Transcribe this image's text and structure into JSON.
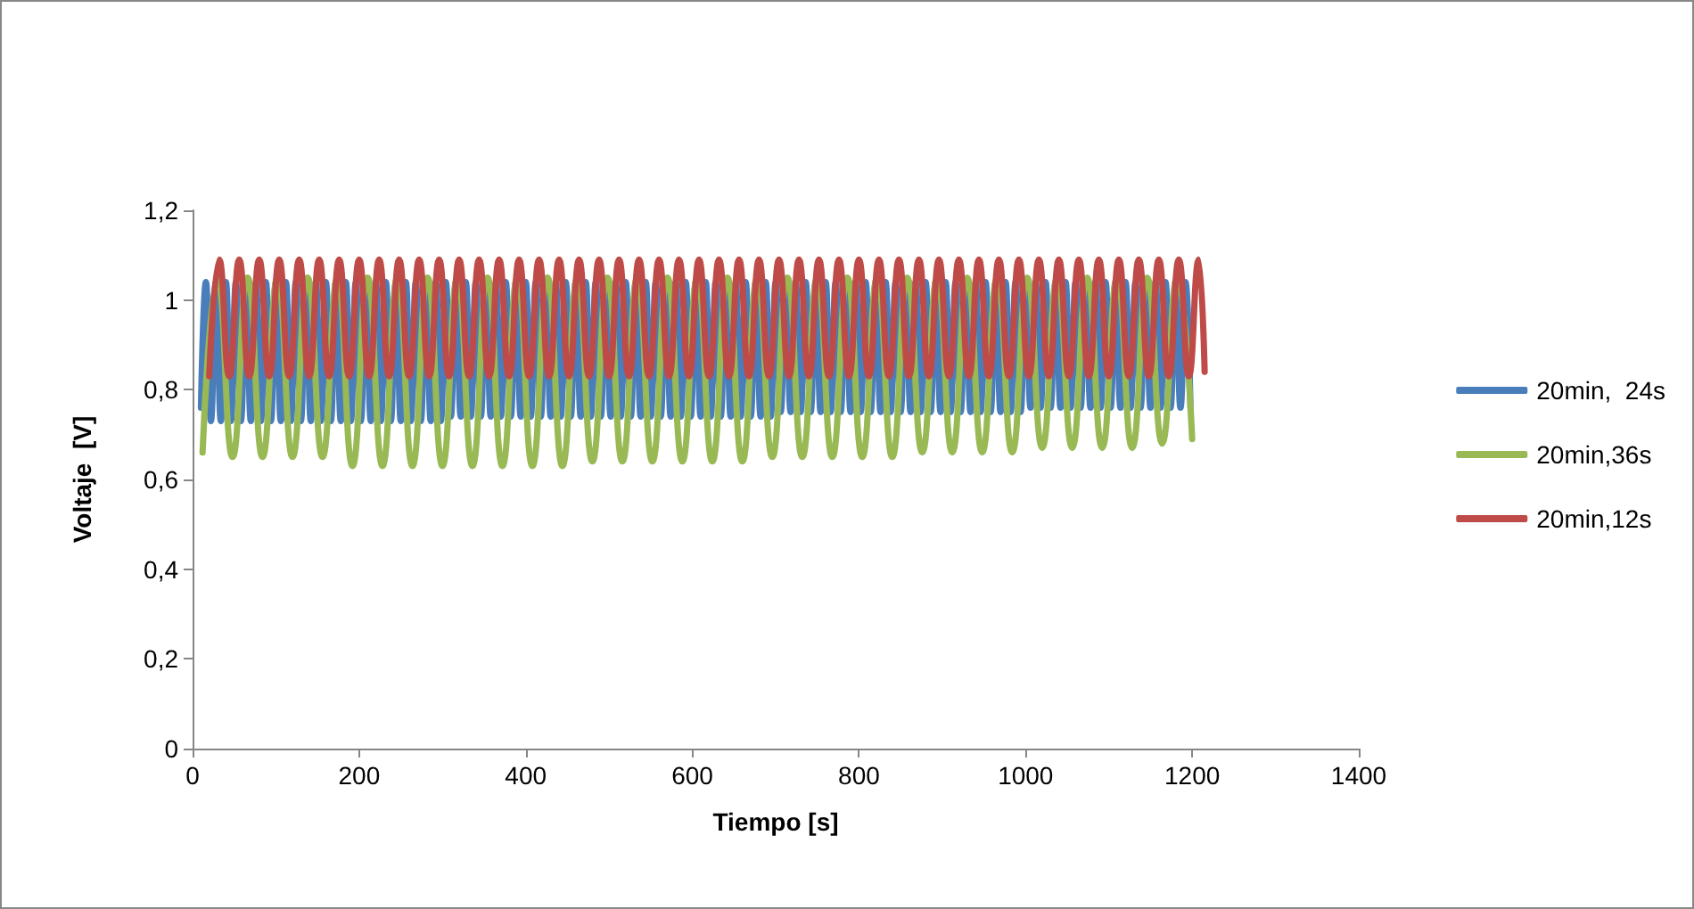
{
  "chart_data": {
    "type": "line",
    "xlabel": "Tiempo [s]",
    "ylabel": "Voltaje  [V]",
    "xlim": [
      0,
      1400
    ],
    "xticks": [
      0,
      200,
      400,
      600,
      800,
      1000,
      1200,
      1400
    ],
    "ylim": [
      0,
      1.2
    ],
    "yticks": [
      0,
      {
        "value": 0.2,
        "label": "0,2"
      },
      {
        "value": 0.4,
        "label": "0,4"
      },
      {
        "value": 0.6,
        "label": "0,6"
      },
      {
        "value": 0.8,
        "label": "0,8"
      },
      1,
      {
        "value": 1.2,
        "label": "1,2"
      }
    ],
    "grid": false,
    "legend": "right",
    "marker": "none",
    "line_style": "solid",
    "series": [
      {
        "name": "20min,  24s",
        "color": "#4a7ebb",
        "x": [
          10,
          16,
          22,
          28,
          34,
          40,
          46,
          52,
          58,
          64,
          70,
          76,
          82,
          88,
          94,
          100,
          106,
          112,
          118,
          124,
          130,
          136,
          142,
          148,
          154,
          160,
          166,
          172,
          178,
          184,
          190,
          196,
          202,
          208,
          214,
          220,
          226,
          232,
          238,
          244,
          250,
          256,
          262,
          268,
          274,
          280,
          286,
          292,
          298,
          304,
          310,
          316,
          322,
          328,
          334,
          340,
          346,
          352,
          358,
          364,
          370,
          376,
          382,
          388,
          394,
          400,
          406,
          412,
          418,
          424,
          430,
          436,
          442,
          448,
          454,
          460,
          466,
          472,
          478,
          484,
          490,
          496,
          502,
          508,
          514,
          520,
          526,
          532,
          538,
          544,
          550,
          556,
          562,
          568,
          574,
          580,
          586,
          592,
          598,
          604,
          610,
          616,
          622,
          628,
          634,
          640,
          646,
          652,
          658,
          664,
          670,
          676,
          682,
          688,
          694,
          700,
          706,
          712,
          718,
          724,
          730,
          736,
          742,
          748,
          754,
          760,
          766,
          772,
          778,
          784,
          790,
          796,
          802,
          808,
          814,
          820,
          826,
          832,
          838,
          844,
          850,
          856,
          862,
          868,
          874,
          880,
          886,
          892,
          898,
          904,
          910,
          916,
          922,
          928,
          934,
          940,
          946,
          952,
          958,
          964,
          970,
          976,
          982,
          988,
          994,
          1000,
          1006,
          1012,
          1018,
          1024,
          1030,
          1036,
          1042,
          1048,
          1054,
          1060,
          1066,
          1072,
          1078,
          1084,
          1090,
          1096,
          1102,
          1108,
          1114,
          1120,
          1126,
          1132,
          1138,
          1144,
          1150,
          1156,
          1162,
          1168,
          1174,
          1180,
          1186,
          1192,
          1198
        ],
        "values": [
          0.76,
          1.04,
          0.73,
          1.04,
          0.73,
          1.04,
          0.73,
          1.04,
          0.73,
          1.04,
          0.73,
          1.04,
          0.73,
          1.04,
          0.73,
          1.04,
          0.73,
          1.04,
          0.73,
          1.04,
          0.73,
          1.04,
          0.73,
          1.04,
          0.73,
          1.04,
          0.73,
          1.04,
          0.73,
          1.04,
          0.73,
          1.04,
          0.73,
          1.04,
          0.73,
          1.04,
          0.73,
          1.04,
          0.73,
          1.04,
          0.73,
          1.04,
          0.73,
          1.04,
          0.73,
          1.04,
          0.73,
          1.04,
          0.73,
          1.04,
          0.74,
          1.04,
          0.74,
          1.04,
          0.74,
          1.04,
          0.74,
          1.04,
          0.74,
          1.04,
          0.74,
          1.04,
          0.74,
          1.04,
          0.74,
          1.04,
          0.74,
          1.04,
          0.74,
          1.04,
          0.74,
          1.04,
          0.74,
          1.04,
          0.74,
          1.04,
          0.74,
          1.04,
          0.74,
          1.04,
          0.74,
          1.04,
          0.74,
          1.04,
          0.74,
          1.04,
          0.74,
          1.04,
          0.74,
          1.04,
          0.74,
          1.04,
          0.74,
          1.04,
          0.74,
          1.04,
          0.74,
          1.04,
          0.74,
          1.04,
          0.74,
          1.04,
          0.74,
          1.04,
          0.74,
          1.04,
          0.74,
          1.04,
          0.74,
          1.04,
          0.74,
          1.04,
          0.74,
          1.04,
          0.74,
          1.04,
          0.75,
          1.04,
          0.75,
          1.04,
          0.75,
          1.04,
          0.75,
          1.04,
          0.75,
          1.04,
          0.75,
          1.04,
          0.75,
          1.04,
          0.75,
          1.04,
          0.75,
          1.04,
          0.75,
          1.04,
          0.75,
          1.04,
          0.75,
          1.04,
          0.75,
          1.04,
          0.75,
          1.04,
          0.75,
          1.04,
          0.75,
          1.04,
          0.75,
          1.04,
          0.75,
          1.04,
          0.75,
          1.04,
          0.75,
          1.04,
          0.75,
          1.04,
          0.75,
          1.04,
          0.75,
          1.04,
          0.75,
          1.04,
          0.75,
          1.04,
          0.76,
          1.04,
          0.76,
          1.04,
          0.76,
          1.04,
          0.76,
          1.04,
          0.76,
          1.04,
          0.76,
          1.04,
          0.76,
          1.04,
          0.76,
          1.04,
          0.76,
          1.04,
          0.76,
          1.04,
          0.76,
          1.04,
          0.76,
          1.04,
          0.76,
          1.04,
          0.76,
          1.04,
          0.76,
          1.04,
          0.76,
          1.04,
          0.76
        ]
      },
      {
        "name": "20min,36s",
        "color": "#98b954",
        "x": [
          12,
          30,
          48,
          66,
          84,
          102,
          120,
          138,
          156,
          174,
          192,
          210,
          228,
          246,
          264,
          282,
          300,
          318,
          336,
          354,
          372,
          390,
          408,
          426,
          444,
          462,
          480,
          498,
          516,
          534,
          552,
          570,
          588,
          606,
          624,
          642,
          660,
          678,
          696,
          714,
          732,
          750,
          768,
          786,
          804,
          822,
          840,
          858,
          876,
          894,
          912,
          930,
          948,
          966,
          984,
          1002,
          1020,
          1038,
          1056,
          1074,
          1092,
          1110,
          1128,
          1146,
          1164,
          1182,
          1200
        ],
        "values": [
          0.66,
          1.05,
          0.65,
          1.05,
          0.65,
          1.05,
          0.65,
          1.05,
          0.65,
          1.05,
          0.63,
          1.05,
          0.63,
          1.05,
          0.63,
          1.05,
          0.63,
          1.05,
          0.63,
          1.05,
          0.63,
          1.05,
          0.63,
          1.05,
          0.63,
          1.05,
          0.64,
          1.05,
          0.64,
          1.05,
          0.64,
          1.05,
          0.64,
          1.05,
          0.64,
          1.05,
          0.64,
          1.05,
          0.65,
          1.05,
          0.65,
          1.05,
          0.65,
          1.05,
          0.65,
          1.05,
          0.65,
          1.05,
          0.66,
          1.05,
          0.66,
          1.05,
          0.66,
          1.05,
          0.66,
          1.05,
          0.67,
          1.05,
          0.67,
          1.05,
          0.67,
          1.05,
          0.67,
          1.05,
          0.68,
          1.05,
          0.69
        ]
      },
      {
        "name": "20min,12s",
        "color": "#be4b48",
        "x": [
          20,
          32,
          44,
          56,
          68,
          80,
          92,
          104,
          116,
          128,
          140,
          152,
          164,
          176,
          188,
          200,
          212,
          224,
          236,
          248,
          260,
          272,
          284,
          296,
          308,
          320,
          332,
          344,
          356,
          368,
          380,
          392,
          404,
          416,
          428,
          440,
          452,
          464,
          476,
          488,
          500,
          512,
          524,
          536,
          548,
          560,
          572,
          584,
          596,
          608,
          620,
          632,
          644,
          656,
          668,
          680,
          692,
          704,
          716,
          728,
          740,
          752,
          764,
          776,
          788,
          800,
          812,
          824,
          836,
          848,
          860,
          872,
          884,
          896,
          908,
          920,
          932,
          944,
          956,
          968,
          980,
          992,
          1004,
          1016,
          1028,
          1040,
          1052,
          1064,
          1076,
          1088,
          1100,
          1112,
          1124,
          1136,
          1148,
          1160,
          1172,
          1184,
          1196,
          1208,
          1215
        ],
        "values": [
          0.83,
          1.09,
          0.83,
          1.09,
          0.83,
          1.09,
          0.83,
          1.09,
          0.83,
          1.09,
          0.83,
          1.09,
          0.83,
          1.09,
          0.83,
          1.09,
          0.83,
          1.09,
          0.83,
          1.09,
          0.83,
          1.09,
          0.83,
          1.09,
          0.83,
          1.09,
          0.83,
          1.09,
          0.83,
          1.09,
          0.83,
          1.09,
          0.83,
          1.09,
          0.83,
          1.09,
          0.83,
          1.09,
          0.83,
          1.09,
          0.83,
          1.09,
          0.83,
          1.09,
          0.83,
          1.09,
          0.83,
          1.09,
          0.83,
          1.09,
          0.83,
          1.09,
          0.83,
          1.09,
          0.83,
          1.09,
          0.83,
          1.09,
          0.83,
          1.09,
          0.83,
          1.09,
          0.83,
          1.09,
          0.83,
          1.09,
          0.83,
          1.09,
          0.83,
          1.09,
          0.83,
          1.09,
          0.83,
          1.09,
          0.83,
          1.09,
          0.83,
          1.09,
          0.83,
          1.09,
          0.83,
          1.09,
          0.83,
          1.09,
          0.83,
          1.09,
          0.83,
          1.09,
          0.83,
          1.09,
          0.83,
          1.09,
          0.83,
          1.09,
          0.83,
          1.09,
          0.83,
          1.09,
          0.83,
          1.09,
          0.84
        ]
      }
    ]
  }
}
